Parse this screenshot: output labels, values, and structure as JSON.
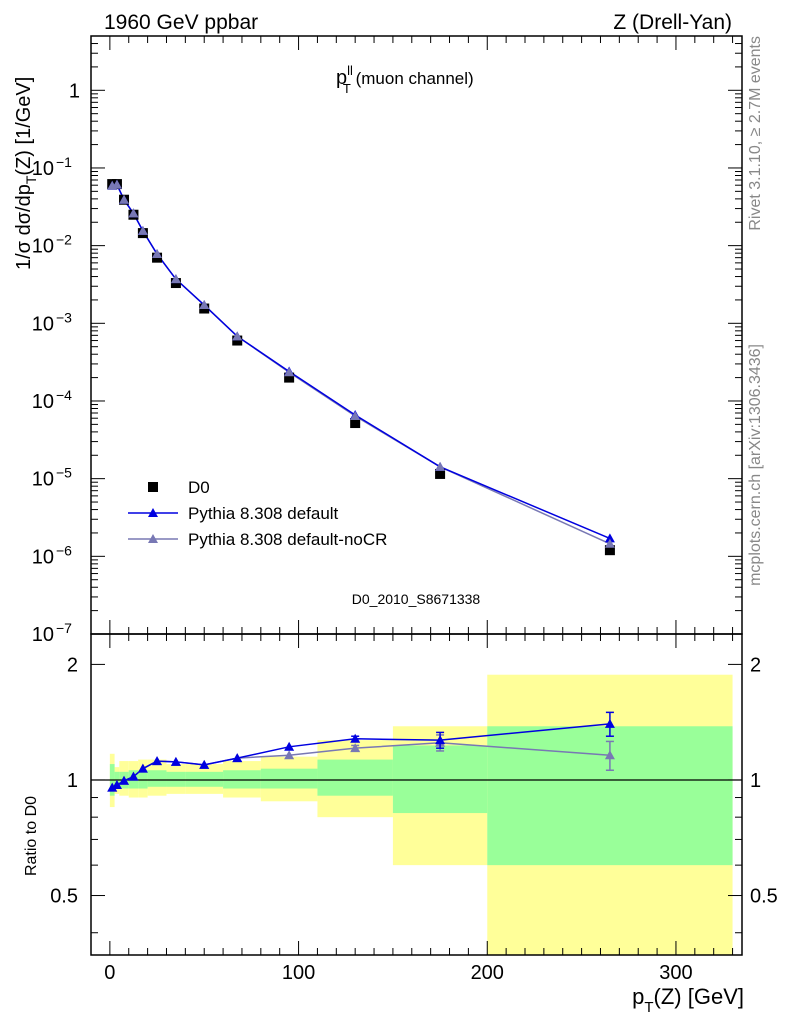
{
  "header": {
    "left": "1960 GeV ppbar",
    "right": "Z (Drell-Yan)"
  },
  "side": {
    "rivet": "Rivet 3.1.10, ≥ 2.7M events",
    "mcplots": "mcplots.cern.ch [arXiv:1306.3436]"
  },
  "chart_data": [
    {
      "type": "scatter",
      "panel": "main",
      "title_main": "p",
      "title_sup": "ll",
      "title_sub": "T",
      "title_rest": " (muon channel)",
      "analysis_label": "D0_2010_S8671338",
      "ylabel": "1/σ  dσ/dp_T(Z) [1/GeV]",
      "yscale": "log",
      "ylim": [
        1e-07,
        5
      ],
      "xlim": [
        -10,
        335
      ],
      "y_tick_labels": [
        "1",
        "10^-1",
        "10^-2",
        "10^-3",
        "10^-4",
        "10^-5",
        "10^-6",
        "10^-7"
      ],
      "legend_placement": "lower-left",
      "series": [
        {
          "name": "D0",
          "marker": "square",
          "color": "#000000",
          "x": [
            1.25,
            3.75,
            7.5,
            12.5,
            17.5,
            25,
            35,
            50,
            67.5,
            95,
            130,
            175,
            265
          ],
          "y": [
            0.062,
            0.062,
            0.039,
            0.025,
            0.0145,
            0.007,
            0.0033,
            0.00155,
            0.0006,
            0.0002,
            5.2e-05,
            1.15e-05,
            1.2e-06
          ]
        },
        {
          "name": "Pythia 8.308 default",
          "marker": "triangle",
          "color": "#0000e0",
          "x": [
            1.25,
            3.75,
            7.5,
            12.5,
            17.5,
            25,
            35,
            50,
            67.5,
            95,
            130,
            175,
            265
          ],
          "y": [
            0.059,
            0.061,
            0.039,
            0.026,
            0.0155,
            0.0078,
            0.0037,
            0.00172,
            0.00068,
            0.00024,
            6.6e-05,
            1.42e-05,
            1.7e-06
          ]
        },
        {
          "name": "Pythia 8.308 default-noCR",
          "marker": "triangle",
          "color": "#7878b4",
          "x": [
            1.25,
            3.75,
            7.5,
            12.5,
            17.5,
            25,
            35,
            50,
            67.5,
            95,
            130,
            175,
            265
          ],
          "y": [
            0.059,
            0.061,
            0.039,
            0.026,
            0.0155,
            0.0078,
            0.0037,
            0.00172,
            0.00068,
            0.000234,
            6.4e-05,
            1.42e-05,
            1.45e-06
          ]
        }
      ]
    },
    {
      "type": "line",
      "panel": "ratio",
      "ylabel": "Ratio to D0",
      "xlabel": "p_T(Z) [GeV]",
      "ylim": [
        0.35,
        2.4
      ],
      "xlim": [
        -10,
        335
      ],
      "x_tick_labels": [
        "0",
        "100",
        "200",
        "300"
      ],
      "y_tick_labels": [
        "0.5",
        "1",
        "2"
      ],
      "reference_line": 1,
      "bands": [
        {
          "x0": 0,
          "x1": 2.5,
          "green": [
            0.91,
            1.1
          ],
          "yellow": [
            0.85,
            1.17
          ]
        },
        {
          "x0": 2.5,
          "x1": 5,
          "green": [
            0.95,
            1.05
          ],
          "yellow": [
            0.92,
            1.08
          ]
        },
        {
          "x0": 5,
          "x1": 10,
          "green": [
            0.95,
            1.05
          ],
          "yellow": [
            0.91,
            1.12
          ]
        },
        {
          "x0": 10,
          "x1": 15,
          "green": [
            0.95,
            1.06
          ],
          "yellow": [
            0.9,
            1.12
          ]
        },
        {
          "x0": 15,
          "x1": 20,
          "green": [
            0.95,
            1.06
          ],
          "yellow": [
            0.9,
            1.13
          ]
        },
        {
          "x0": 20,
          "x1": 30,
          "green": [
            0.96,
            1.06
          ],
          "yellow": [
            0.91,
            1.13
          ]
        },
        {
          "x0": 30,
          "x1": 40,
          "green": [
            0.96,
            1.05
          ],
          "yellow": [
            0.92,
            1.1
          ]
        },
        {
          "x0": 40,
          "x1": 60,
          "green": [
            0.96,
            1.05
          ],
          "yellow": [
            0.92,
            1.1
          ]
        },
        {
          "x0": 60,
          "x1": 80,
          "green": [
            0.95,
            1.06
          ],
          "yellow": [
            0.9,
            1.12
          ]
        },
        {
          "x0": 80,
          "x1": 110,
          "green": [
            0.95,
            1.07
          ],
          "yellow": [
            0.88,
            1.15
          ]
        },
        {
          "x0": 110,
          "x1": 150,
          "green": [
            0.91,
            1.13
          ],
          "yellow": [
            0.8,
            1.27
          ]
        },
        {
          "x0": 150,
          "x1": 200,
          "green": [
            0.82,
            1.23
          ],
          "yellow": [
            0.6,
            1.38
          ]
        },
        {
          "x0": 200,
          "x1": 330,
          "green": [
            0.6,
            1.38
          ],
          "yellow": [
            0.35,
            1.88
          ]
        }
      ],
      "series": [
        {
          "name": "Pythia 8.308 default",
          "color": "#0000e0",
          "x": [
            1.25,
            3.75,
            7.5,
            12.5,
            17.5,
            25,
            35,
            50,
            67.5,
            95,
            130,
            175,
            265
          ],
          "y": [
            0.955,
            0.97,
            0.995,
            1.02,
            1.07,
            1.12,
            1.115,
            1.095,
            1.14,
            1.22,
            1.28,
            1.27,
            1.4
          ],
          "err": [
            0,
            0,
            0,
            0,
            0,
            0,
            0,
            0,
            0,
            0,
            0.02,
            0.06,
            0.1
          ]
        },
        {
          "name": "Pythia 8.308 default-noCR",
          "color": "#7878b4",
          "x": [
            1.25,
            3.75,
            7.5,
            12.5,
            17.5,
            25,
            35,
            50,
            67.5,
            95,
            130,
            175,
            265
          ],
          "y": [
            0.955,
            0.97,
            0.995,
            1.02,
            1.07,
            1.12,
            1.115,
            1.095,
            1.14,
            1.16,
            1.21,
            1.25,
            1.16
          ],
          "err": [
            0,
            0,
            0,
            0,
            0,
            0,
            0,
            0,
            0,
            0,
            0.02,
            0.06,
            0.1
          ]
        }
      ]
    }
  ]
}
